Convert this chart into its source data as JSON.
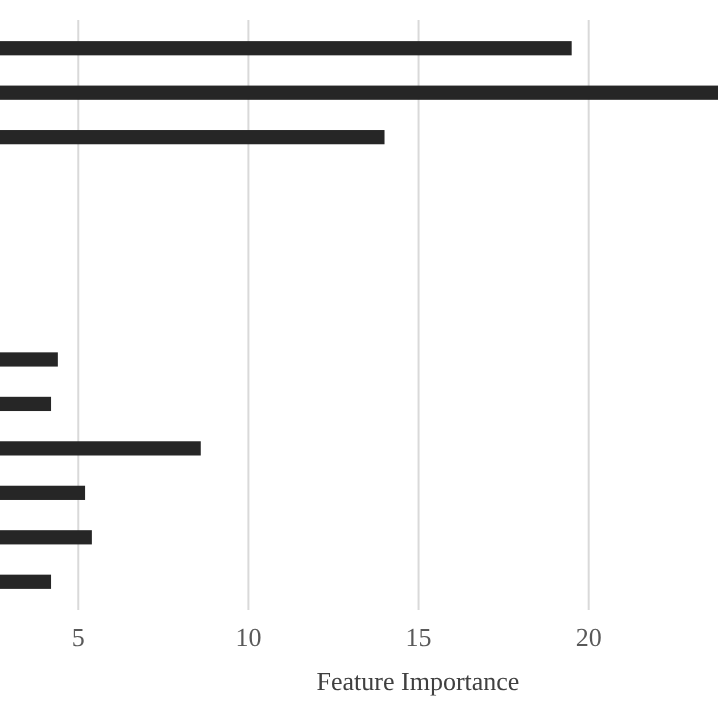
{
  "chart_data": {
    "type": "bar",
    "orientation": "horizontal",
    "xlabel": "Feature Importance",
    "categories": [
      null,
      null,
      null,
      null,
      null,
      null,
      null,
      null,
      null,
      null,
      null,
      null,
      null
    ],
    "values": [
      19.5,
      23.8,
      14.0,
      null,
      null,
      null,
      null,
      4.4,
      4.2,
      8.6,
      5.2,
      5.4,
      4.2
    ],
    "color": "#262626",
    "xlim": [
      2.7,
      23.8
    ],
    "xticks": [
      5,
      10,
      15,
      20
    ],
    "grid": "x"
  }
}
